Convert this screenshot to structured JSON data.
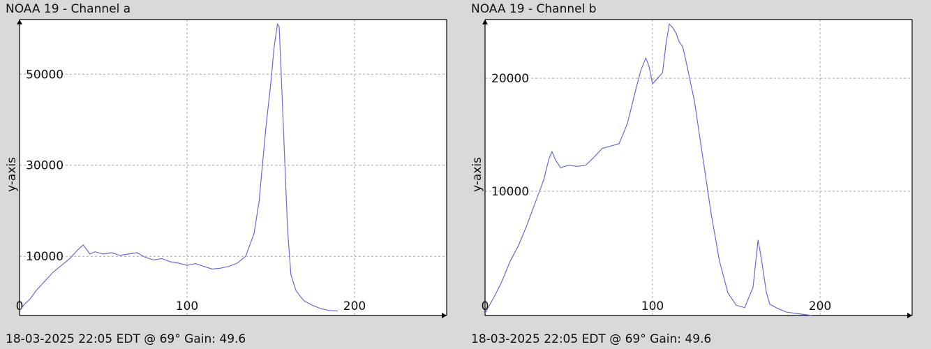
{
  "chart_data": [
    {
      "type": "line",
      "title": "NOAA 19 - Channel a",
      "footer": "18-03-2025 22:05 EDT @ 69° Gain: 49.6",
      "ylabel": "y-axis",
      "xlim": [
        0,
        255
      ],
      "ylim": [
        -3000,
        62000
      ],
      "xticks": [
        0,
        100,
        200
      ],
      "xtick_labels": [
        "0",
        "100",
        "200"
      ],
      "yticks": [
        10000,
        30000,
        50000
      ],
      "ytick_labels": [
        "10000",
        "30000",
        "50000"
      ],
      "grid": true,
      "series": [
        {
          "x": [
            0,
            3,
            6,
            10,
            15,
            20,
            25,
            30,
            35,
            38,
            40,
            42,
            45,
            50,
            55,
            60,
            65,
            70,
            75,
            80,
            85,
            90,
            95,
            100,
            105,
            110,
            115,
            120,
            125,
            130,
            135,
            140,
            143,
            145,
            147,
            150,
            152,
            154,
            155,
            156,
            158,
            160,
            162,
            165,
            168,
            170,
            175,
            180,
            185,
            190
          ],
          "y": [
            -2000,
            -500,
            500,
            2500,
            4500,
            6500,
            8000,
            9500,
            11500,
            12500,
            11500,
            10500,
            11000,
            10500,
            10800,
            10200,
            10500,
            10800,
            9800,
            9200,
            9500,
            8800,
            8500,
            8000,
            8400,
            7800,
            7200,
            7400,
            7800,
            8500,
            10000,
            15000,
            22000,
            30000,
            38000,
            48000,
            56000,
            61000,
            60500,
            52000,
            34000,
            16000,
            6000,
            2500,
            1000,
            200,
            -800,
            -1500,
            -1900,
            -2000
          ]
        }
      ]
    },
    {
      "type": "line",
      "title": "NOAA 19 - Channel b",
      "footer": "18-03-2025 22:05 EDT @ 69° Gain: 49.6",
      "ylabel": "y-axis",
      "xlim": [
        0,
        255
      ],
      "ylim": [
        -1000,
        25200
      ],
      "xticks": [
        0,
        100,
        200
      ],
      "xtick_labels": [
        "0",
        "100",
        "200"
      ],
      "yticks": [
        10000,
        20000
      ],
      "ytick_labels": [
        "10000",
        "20000"
      ],
      "grid": true,
      "series": [
        {
          "x": [
            0,
            3,
            6,
            10,
            15,
            20,
            25,
            30,
            35,
            38,
            40,
            42,
            45,
            50,
            55,
            60,
            65,
            70,
            75,
            80,
            85,
            90,
            93,
            96,
            98,
            100,
            103,
            106,
            108,
            110,
            112,
            114,
            116,
            118,
            120,
            125,
            130,
            135,
            140,
            145,
            150,
            155,
            160,
            163,
            165,
            168,
            170,
            175,
            180,
            185,
            190,
            195
          ],
          "y": [
            -800,
            0,
            800,
            2000,
            3800,
            5200,
            7000,
            9000,
            11000,
            12800,
            13500,
            12800,
            12100,
            12300,
            12200,
            12300,
            13000,
            13800,
            14000,
            14200,
            16000,
            19000,
            20700,
            21800,
            21000,
            19500,
            20000,
            20500,
            23000,
            24800,
            24500,
            24000,
            23200,
            22800,
            21500,
            18000,
            13000,
            8000,
            3800,
            1000,
            -100,
            -300,
            1500,
            5700,
            4000,
            1000,
            0,
            -400,
            -700,
            -800,
            -900,
            -1000
          ]
        }
      ]
    }
  ]
}
